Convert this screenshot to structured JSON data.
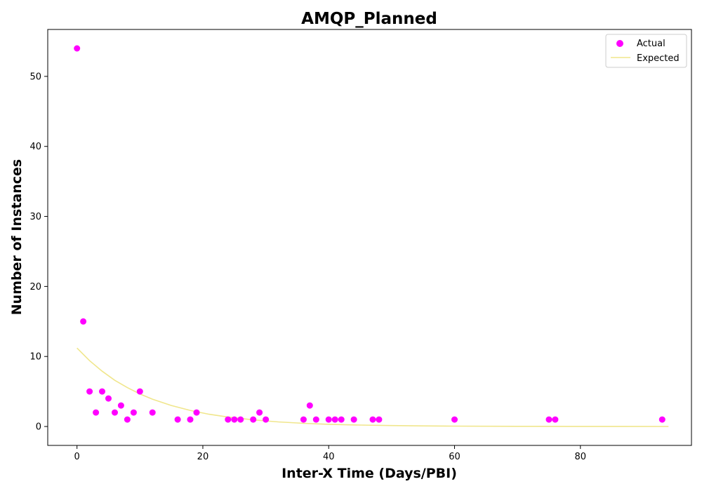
{
  "chart_data": {
    "type": "scatter",
    "title": "AMQP_Planned",
    "xlabel": "Inter-X Time (Days/PBI)",
    "ylabel": "Number of Instances",
    "xlim": [
      -4.65,
      97.65
    ],
    "ylim": [
      -2.7,
      56.7
    ],
    "xticks": [
      0,
      20,
      40,
      60,
      80
    ],
    "yticks": [
      0,
      10,
      20,
      30,
      40,
      50
    ],
    "grid": false,
    "legend_position": "top-right",
    "series": [
      {
        "name": "Actual",
        "kind": "scatter",
        "color": "#ff00ff",
        "x": [
          0,
          1,
          2,
          3,
          4,
          5,
          6,
          7,
          8,
          9,
          10,
          12,
          16,
          18,
          19,
          24,
          25,
          26,
          28,
          29,
          30,
          36,
          37,
          38,
          40,
          41,
          42,
          44,
          47,
          48,
          60,
          75,
          76,
          93
        ],
        "y": [
          54,
          15,
          5,
          2,
          5,
          4,
          2,
          3,
          1,
          2,
          5,
          2,
          1,
          1,
          2,
          1,
          1,
          1,
          1,
          2,
          1,
          1,
          3,
          1,
          1,
          1,
          1,
          1,
          1,
          1,
          1,
          1,
          1,
          1
        ]
      },
      {
        "name": "Expected",
        "kind": "line",
        "color": "#f0e68c",
        "x": [
          0,
          2,
          4,
          6,
          8,
          10,
          12,
          15,
          18,
          21,
          24,
          28,
          32,
          36,
          40,
          45,
          50,
          55,
          60,
          70,
          80,
          94
        ],
        "y": [
          11.2,
          9.4,
          7.9,
          6.6,
          5.55,
          4.65,
          3.9,
          3.0,
          2.3,
          1.75,
          1.35,
          0.95,
          0.66,
          0.46,
          0.32,
          0.2,
          0.13,
          0.08,
          0.05,
          0.02,
          0.01,
          0.0
        ]
      }
    ]
  }
}
